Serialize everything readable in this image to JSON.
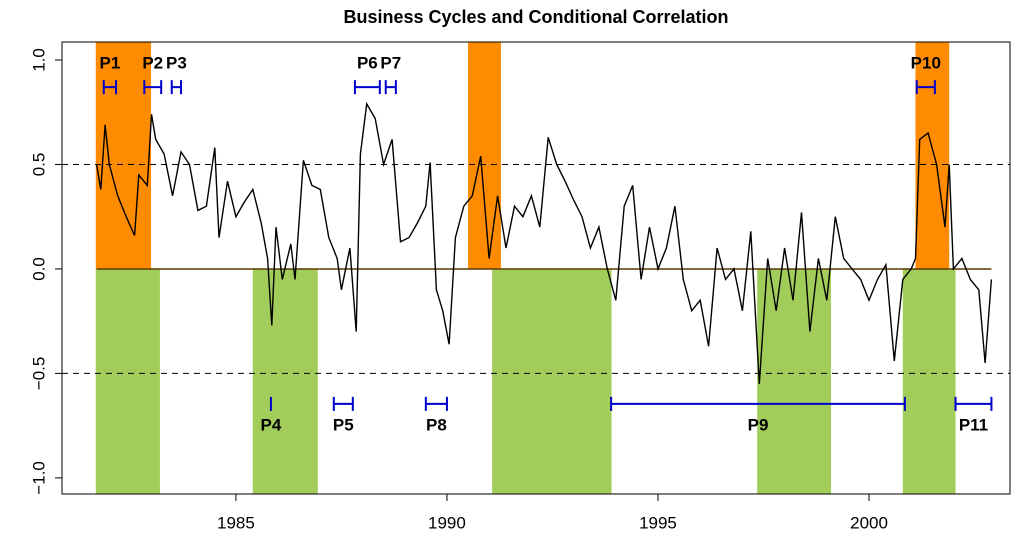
{
  "chart_data": {
    "type": "line",
    "title": "Business Cycles and Conditional Correlation",
    "xlim": [
      1980.88,
      2003.34
    ],
    "ylim": [
      -1.077,
      1.086
    ],
    "xticks": [
      1985,
      1990,
      1995,
      2000
    ],
    "yticks": [
      {
        "value": -1,
        "label": "−1.0"
      },
      {
        "value": -0.5,
        "label": "−0.5"
      },
      {
        "value": 0,
        "label": "0.0"
      },
      {
        "value": 0.5,
        "label": "0.5"
      },
      {
        "value": 1,
        "label": "1.0"
      }
    ],
    "dashed_lines": [
      0.5,
      -0.5
    ],
    "zero_line": 0,
    "regions": [
      {
        "start": 1981.68,
        "end": 1982.99,
        "side": "positive",
        "color": "#ff8c00"
      },
      {
        "start": 1990.5,
        "end": 1991.28,
        "side": "positive",
        "color": "#ff8c00"
      },
      {
        "start": 2001.1,
        "end": 2001.9,
        "side": "positive",
        "color": "#ff8c00"
      },
      {
        "start": 1981.68,
        "end": 1983.2,
        "side": "negative",
        "color": "#a2cd5a"
      },
      {
        "start": 1985.4,
        "end": 1986.94,
        "side": "negative",
        "color": "#a2cd5a"
      },
      {
        "start": 1991.07,
        "end": 1993.9,
        "side": "negative",
        "color": "#a2cd5a"
      },
      {
        "start": 1997.35,
        "end": 1999.1,
        "side": "negative",
        "color": "#a2cd5a"
      },
      {
        "start": 2000.8,
        "end": 2002.05,
        "side": "negative",
        "color": "#a2cd5a"
      }
    ],
    "periods": [
      {
        "label": "P1",
        "start": 1981.87,
        "end": 1982.16,
        "y": 0.87
      },
      {
        "label": "P2",
        "start": 1982.83,
        "end": 1983.23,
        "y": 0.87
      },
      {
        "label": "P3",
        "start": 1983.48,
        "end": 1983.7,
        "y": 0.87
      },
      {
        "label": "P6",
        "start": 1987.82,
        "end": 1988.41,
        "y": 0.87
      },
      {
        "label": "P7",
        "start": 1988.55,
        "end": 1988.79,
        "y": 0.87
      },
      {
        "label": "P10",
        "start": 2001.13,
        "end": 2001.56,
        "y": 0.87
      },
      {
        "label": "P4",
        "start": 1985.83,
        "end": 1985.83,
        "y": -0.646
      },
      {
        "label": "P5",
        "start": 1987.32,
        "end": 1987.77,
        "y": -0.646
      },
      {
        "label": "P8",
        "start": 1989.5,
        "end": 1990.0,
        "y": -0.646
      },
      {
        "label": "P9",
        "start": 1993.89,
        "end": 2000.85,
        "y": -0.646
      },
      {
        "label": "P11",
        "start": 2002.05,
        "end": 2002.9,
        "y": -0.646
      }
    ],
    "period_color": "#0000cd",
    "line_color": "#000000",
    "x": [
      1981.7,
      1981.8,
      1981.9,
      1982.0,
      1982.2,
      1982.4,
      1982.6,
      1982.7,
      1982.9,
      1983.0,
      1983.1,
      1983.3,
      1983.5,
      1983.7,
      1983.9,
      1984.1,
      1984.3,
      1984.5,
      1984.6,
      1984.8,
      1985.0,
      1985.2,
      1985.4,
      1985.6,
      1985.75,
      1985.85,
      1985.95,
      1986.1,
      1986.3,
      1986.4,
      1986.6,
      1986.8,
      1987.0,
      1987.2,
      1987.4,
      1987.5,
      1987.7,
      1987.85,
      1987.95,
      1988.1,
      1988.3,
      1988.5,
      1988.7,
      1988.9,
      1989.1,
      1989.3,
      1989.5,
      1989.6,
      1989.75,
      1989.9,
      1990.05,
      1990.2,
      1990.4,
      1990.6,
      1990.8,
      1991.0,
      1991.2,
      1991.4,
      1991.6,
      1991.8,
      1992.0,
      1992.2,
      1992.4,
      1992.6,
      1992.8,
      1993.0,
      1993.2,
      1993.4,
      1993.6,
      1993.8,
      1994.0,
      1994.2,
      1994.4,
      1994.6,
      1994.8,
      1995.0,
      1995.2,
      1995.4,
      1995.6,
      1995.8,
      1996.0,
      1996.2,
      1996.4,
      1996.6,
      1996.8,
      1997.0,
      1997.2,
      1997.4,
      1997.6,
      1997.8,
      1998.0,
      1998.2,
      1998.4,
      1998.6,
      1998.8,
      1999.0,
      1999.2,
      1999.4,
      1999.6,
      1999.8,
      2000.0,
      2000.2,
      2000.4,
      2000.6,
      2000.8,
      2001.0,
      2001.1,
      2001.2,
      2001.4,
      2001.6,
      2001.8,
      2001.9,
      2002.0,
      2002.2,
      2002.4,
      2002.6,
      2002.75,
      2002.9
    ],
    "values": [
      0.5,
      0.38,
      0.69,
      0.5,
      0.35,
      0.25,
      0.16,
      0.45,
      0.4,
      0.74,
      0.62,
      0.55,
      0.35,
      0.56,
      0.5,
      0.28,
      0.3,
      0.58,
      0.15,
      0.42,
      0.25,
      0.32,
      0.38,
      0.22,
      0.05,
      -0.27,
      0.2,
      -0.05,
      0.12,
      -0.05,
      0.52,
      0.4,
      0.38,
      0.15,
      0.05,
      -0.1,
      0.1,
      -0.3,
      0.55,
      0.79,
      0.72,
      0.5,
      0.62,
      0.13,
      0.15,
      0.22,
      0.3,
      0.51,
      -0.1,
      -0.2,
      -0.36,
      0.15,
      0.3,
      0.35,
      0.54,
      0.05,
      0.35,
      0.1,
      0.3,
      0.25,
      0.35,
      0.2,
      0.63,
      0.5,
      0.42,
      0.33,
      0.25,
      0.1,
      0.2,
      0.0,
      -0.15,
      0.3,
      0.4,
      -0.05,
      0.2,
      0.0,
      0.1,
      0.3,
      -0.05,
      -0.2,
      -0.15,
      -0.37,
      0.1,
      -0.05,
      0.0,
      -0.2,
      0.18,
      -0.55,
      0.05,
      -0.2,
      0.1,
      -0.15,
      0.27,
      -0.3,
      0.05,
      -0.15,
      0.25,
      0.05,
      0.0,
      -0.05,
      -0.15,
      -0.05,
      0.02,
      -0.44,
      -0.05,
      0.0,
      0.05,
      0.62,
      0.65,
      0.5,
      0.2,
      0.5,
      0.0,
      0.05,
      -0.05,
      -0.1,
      -0.45,
      -0.05
    ]
  }
}
